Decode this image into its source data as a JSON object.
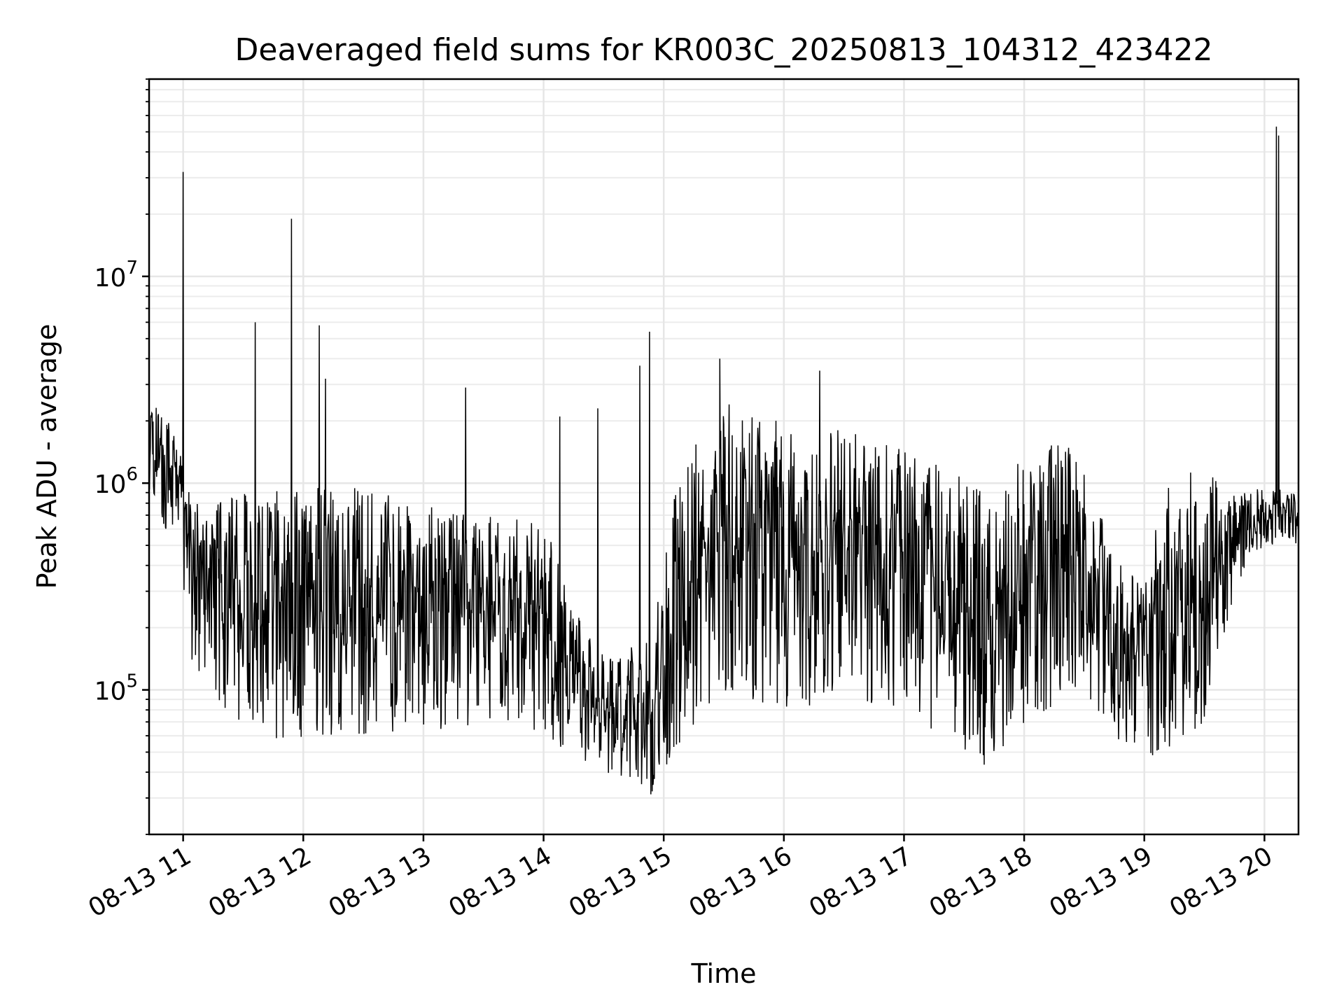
{
  "chart_data": {
    "type": "line",
    "title": "Deaveraged field sums for KR003C_20250813_104312_423422",
    "xlabel": "Time",
    "ylabel": "Peak ADU - average",
    "y_scale": "log",
    "ylim": [
      20000,
      90000000
    ],
    "xlim": [
      "2025-08-13 10:43",
      "2025-08-13 20:17"
    ],
    "grid": true,
    "legend": "none",
    "line_color": "#000000",
    "x_ticks": [
      {
        "value": "2025-08-13 11:00",
        "label": "08-13 11"
      },
      {
        "value": "2025-08-13 12:00",
        "label": "08-13 12"
      },
      {
        "value": "2025-08-13 13:00",
        "label": "08-13 13"
      },
      {
        "value": "2025-08-13 14:00",
        "label": "08-13 14"
      },
      {
        "value": "2025-08-13 15:00",
        "label": "08-13 15"
      },
      {
        "value": "2025-08-13 16:00",
        "label": "08-13 16"
      },
      {
        "value": "2025-08-13 17:00",
        "label": "08-13 17"
      },
      {
        "value": "2025-08-13 18:00",
        "label": "08-13 18"
      },
      {
        "value": "2025-08-13 19:00",
        "label": "08-13 19"
      },
      {
        "value": "2025-08-13 20:00",
        "label": "08-13 20"
      }
    ],
    "y_ticks": [
      {
        "value": 100000,
        "base": "10",
        "exp": "5"
      },
      {
        "value": 1000000,
        "base": "10",
        "exp": "6"
      },
      {
        "value": 10000000,
        "base": "10",
        "exp": "7"
      }
    ],
    "series": [
      {
        "envelope": [
          {
            "t": "2025-08-13 10:43",
            "low": 900000,
            "high": 2400000
          },
          {
            "t": "2025-08-13 10:50",
            "low": 600000,
            "high": 2300000
          },
          {
            "t": "2025-08-13 10:58",
            "low": 500000,
            "high": 1500000
          },
          {
            "t": "2025-08-13 11:05",
            "low": 120000,
            "high": 800000
          },
          {
            "t": "2025-08-13 11:20",
            "low": 80000,
            "high": 850000
          },
          {
            "t": "2025-08-13 11:40",
            "low": 60000,
            "high": 950000
          },
          {
            "t": "2025-08-13 12:00",
            "low": 55000,
            "high": 950000
          },
          {
            "t": "2025-08-13 12:30",
            "low": 60000,
            "high": 950000
          },
          {
            "t": "2025-08-13 13:00",
            "low": 60000,
            "high": 800000
          },
          {
            "t": "2025-08-13 13:30",
            "low": 70000,
            "high": 700000
          },
          {
            "t": "2025-08-13 14:00",
            "low": 60000,
            "high": 650000
          },
          {
            "t": "2025-08-13 14:20",
            "low": 45000,
            "high": 200000
          },
          {
            "t": "2025-08-13 14:40",
            "low": 35000,
            "high": 150000
          },
          {
            "t": "2025-08-13 14:55",
            "low": 30000,
            "high": 250000
          },
          {
            "t": "2025-08-13 15:10",
            "low": 60000,
            "high": 1500000
          },
          {
            "t": "2025-08-13 15:30",
            "low": 100000,
            "high": 2500000
          },
          {
            "t": "2025-08-13 16:00",
            "low": 80000,
            "high": 2000000
          },
          {
            "t": "2025-08-13 16:30",
            "low": 90000,
            "high": 1800000
          },
          {
            "t": "2025-08-13 17:00",
            "low": 80000,
            "high": 1500000
          },
          {
            "t": "2025-08-13 17:30",
            "low": 50000,
            "high": 1100000
          },
          {
            "t": "2025-08-13 17:45",
            "low": 40000,
            "high": 800000
          },
          {
            "t": "2025-08-13 18:00",
            "low": 70000,
            "high": 1700000
          },
          {
            "t": "2025-08-13 18:30",
            "low": 100000,
            "high": 1500000
          },
          {
            "t": "2025-08-13 18:45",
            "low": 60000,
            "high": 500000
          },
          {
            "t": "2025-08-13 19:00",
            "low": 40000,
            "high": 300000
          },
          {
            "t": "2025-08-13 19:10",
            "low": 50000,
            "high": 1000000
          },
          {
            "t": "2025-08-13 19:30",
            "low": 70000,
            "high": 1200000
          },
          {
            "t": "2025-08-13 19:45",
            "low": 300000,
            "high": 900000
          },
          {
            "t": "2025-08-13 20:00",
            "low": 500000,
            "high": 950000
          },
          {
            "t": "2025-08-13 20:17",
            "low": 500000,
            "high": 950000
          }
        ],
        "spikes": [
          {
            "t": "2025-08-13 11:00",
            "value": 32000000
          },
          {
            "t": "2025-08-13 11:36",
            "value": 6000000
          },
          {
            "t": "2025-08-13 11:54",
            "value": 19000000
          },
          {
            "t": "2025-08-13 12:08",
            "value": 5800000
          },
          {
            "t": "2025-08-13 12:11",
            "value": 3200000
          },
          {
            "t": "2025-08-13 13:21",
            "value": 2900000
          },
          {
            "t": "2025-08-13 14:08",
            "value": 2100000
          },
          {
            "t": "2025-08-13 14:27",
            "value": 2300000
          },
          {
            "t": "2025-08-13 14:48",
            "value": 3700000
          },
          {
            "t": "2025-08-13 14:53",
            "value": 5400000
          },
          {
            "t": "2025-08-13 15:28",
            "value": 4000000
          },
          {
            "t": "2025-08-13 16:18",
            "value": 3500000
          },
          {
            "t": "2025-08-13 20:06",
            "value": 53000000
          },
          {
            "t": "2025-08-13 20:07",
            "value": 48000000
          }
        ]
      }
    ]
  }
}
